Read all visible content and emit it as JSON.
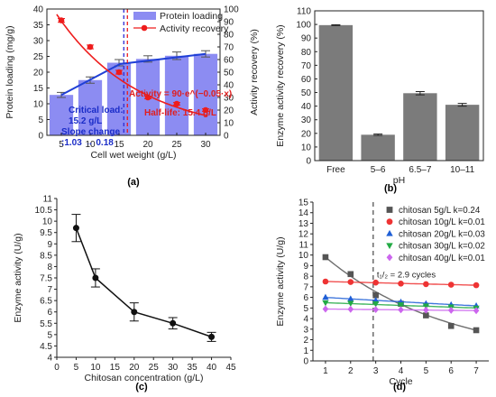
{
  "chart_data": [
    {
      "panel": "(a)",
      "type": "bar",
      "xlabel": "Cell wet weight (g/L)",
      "ylabel": "Protein loading (mg/g)",
      "y2label": "Activity recovery (%)",
      "x_ticks": [
        "5",
        "10",
        "15",
        "20",
        "25",
        "30"
      ],
      "ylim": [
        0,
        40
      ],
      "y_ticks": [
        "0",
        "5",
        "10",
        "15",
        "20",
        "25",
        "30",
        "35",
        "40"
      ],
      "y2lim": [
        0,
        100
      ],
      "y2_ticks": [
        "0",
        "10",
        "20",
        "30",
        "40",
        "50",
        "60",
        "70",
        "80",
        "90",
        "100"
      ],
      "legend_position": "top-right",
      "series": [
        {
          "name": "Protein loading",
          "kind": "bar",
          "color": "#8c8cf2",
          "x": [
            5,
            10,
            15,
            20,
            25,
            30
          ],
          "values": [
            12.8,
            17.5,
            23.0,
            24.2,
            25.2,
            25.8
          ],
          "errors": [
            0.8,
            1.0,
            1.0,
            1.0,
            1.2,
            1.0
          ]
        },
        {
          "name": "Activity recovery",
          "kind": "scatter",
          "color": "#ee1c1c",
          "x": [
            5,
            10,
            15,
            20,
            25,
            30
          ],
          "values": [
            91,
            70,
            50,
            30,
            25,
            20
          ],
          "errors": [
            1.5,
            1.5,
            1.5,
            1.0,
            1.0,
            1.0
          ]
        }
      ],
      "annotations": {
        "activity_fit": "Activity = 90·e^(−0.05·x)",
        "half_life": "Half-life: 15.4 g/L",
        "critical_load": "Critical load:",
        "critical_value": "15.2 g/L",
        "slope_change": "Slope change",
        "slope_values": ":1.03 → 0.18"
      }
    },
    {
      "panel": "(b)",
      "type": "bar",
      "xlabel": "pH",
      "ylabel": "Enzyme activity recovery (%)",
      "categories": [
        "Free",
        "5–6",
        "6.5–7",
        "10–11"
      ],
      "values": [
        99.5,
        19.0,
        49.5,
        41.0
      ],
      "errors": [
        0.3,
        0.5,
        1.2,
        1.0
      ],
      "ylim": [
        0,
        110
      ],
      "y_ticks": [
        "0",
        "10",
        "20",
        "30",
        "40",
        "50",
        "60",
        "70",
        "80",
        "90",
        "100",
        "110"
      ],
      "color": "#7b7b7b"
    },
    {
      "panel": "(c)",
      "type": "line",
      "xlabel": "Chitosan concentration (g/L)",
      "ylabel": "Enzyme activity (U/g)",
      "x": [
        5,
        10,
        20,
        30,
        40
      ],
      "values": [
        9.7,
        7.5,
        6.0,
        5.5,
        4.9
      ],
      "errors": [
        0.6,
        0.4,
        0.4,
        0.25,
        0.2
      ],
      "xlim": [
        0,
        45
      ],
      "x_ticks": [
        "0",
        "5",
        "10",
        "15",
        "20",
        "25",
        "30",
        "35",
        "40",
        "45"
      ],
      "ylim": [
        4,
        11
      ],
      "y_ticks": [
        "4",
        "4.5",
        "5",
        "5.5",
        "6",
        "6.5",
        "7",
        "7.5",
        "8",
        "8.5",
        "9",
        "9.5",
        "10",
        "10.5",
        "11"
      ]
    },
    {
      "panel": "(d)",
      "type": "scatter",
      "xlabel": "Cycle",
      "ylabel": "Enzyme activity (U/g)",
      "x": [
        1,
        2,
        3,
        4,
        5,
        6,
        7
      ],
      "x_ticks": [
        "1",
        "2",
        "3",
        "4",
        "5",
        "6",
        "7"
      ],
      "ylim": [
        0,
        15
      ],
      "y_ticks": [
        "0",
        "1",
        "2",
        "3",
        "4",
        "5",
        "6",
        "7",
        "8",
        "9",
        "10",
        "11",
        "12",
        "13",
        "14",
        "15"
      ],
      "half_life_label": "t₁/₂ = 2.9 cycles",
      "half_life_x": 2.9,
      "legend_position": "top-right",
      "series": [
        {
          "name": "chitosan 5g/L k=0.24",
          "marker": "square",
          "color": "#555555",
          "values": [
            9.8,
            8.2,
            6.2,
            5.4,
            4.3,
            3.3,
            2.9
          ]
        },
        {
          "name": "chitosan 10g/L k=0.01",
          "marker": "circle",
          "color": "#ee3333",
          "values": [
            7.5,
            7.45,
            7.4,
            7.3,
            7.25,
            7.2,
            7.15
          ]
        },
        {
          "name": "chitosan 20g/L k=0.03",
          "marker": "triangle-up",
          "color": "#1f5fd6",
          "values": [
            6.0,
            5.85,
            5.7,
            5.55,
            5.4,
            5.3,
            5.2
          ]
        },
        {
          "name": "chitosan 30g/L k=0.02",
          "marker": "triangle-down",
          "color": "#22aa44",
          "values": [
            5.5,
            5.45,
            5.4,
            5.3,
            5.2,
            5.1,
            5.0
          ]
        },
        {
          "name": "chitosan 40g/L k=0.01",
          "marker": "diamond",
          "color": "#cc66ee",
          "values": [
            4.9,
            4.88,
            4.85,
            4.83,
            4.8,
            4.78,
            4.75
          ]
        }
      ]
    }
  ]
}
